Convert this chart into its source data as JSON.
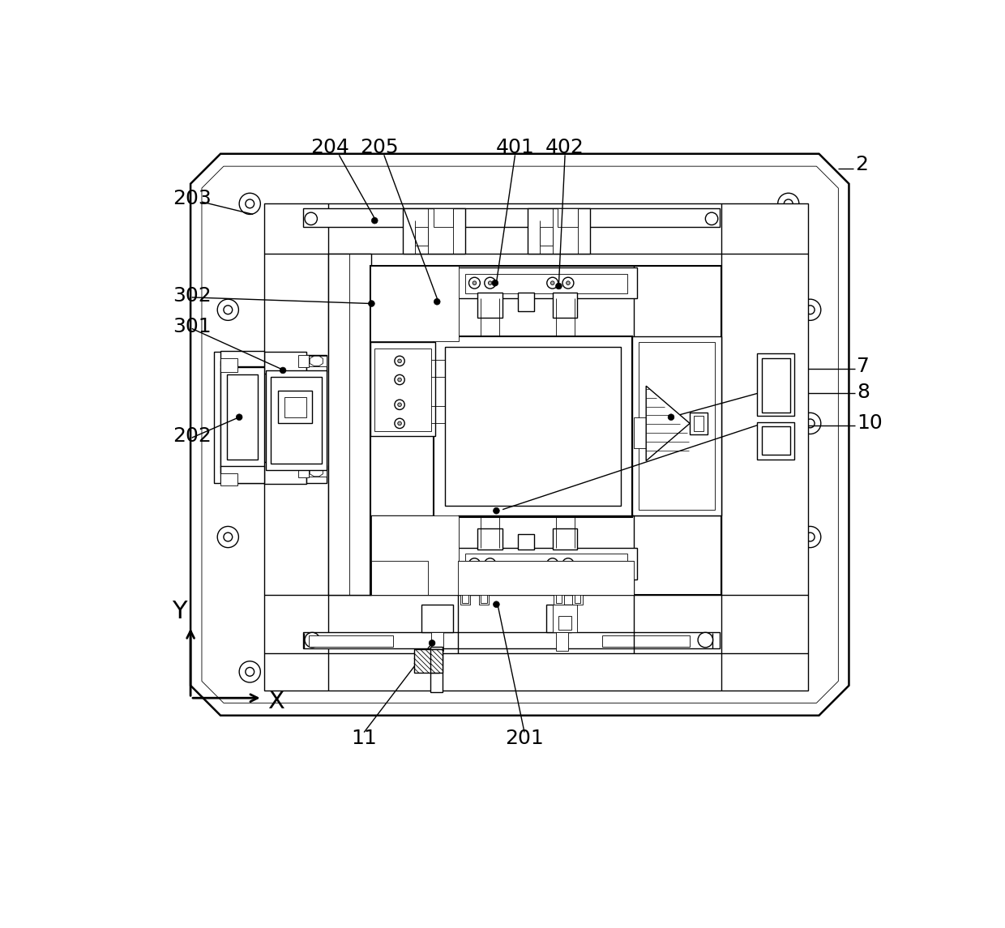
{
  "bg": "#ffffff",
  "lc": "#000000",
  "lw": 1.0,
  "tlw": 0.6,
  "thk": 1.8,
  "fw": 12.4,
  "fh": 11.45
}
